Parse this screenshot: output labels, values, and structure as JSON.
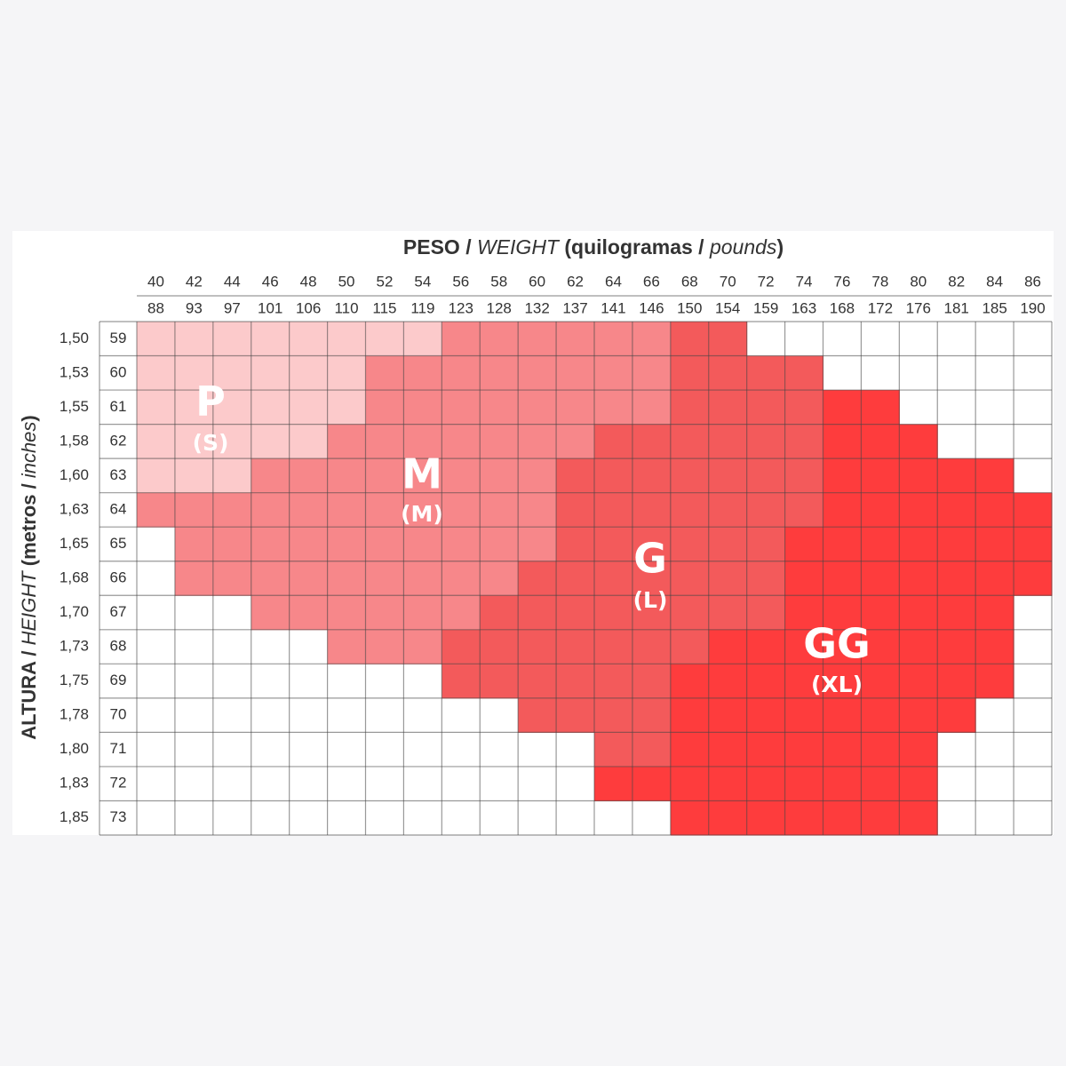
{
  "header": {
    "title": [
      "PESO / ",
      "WEIGHT",
      " (quilogramas / ",
      "pounds",
      ")"
    ],
    "side_title": [
      "ALTURA / ",
      "HEIGHT",
      " (metros / ",
      "inches",
      ")"
    ]
  },
  "columns": {
    "kg": [
      40,
      42,
      44,
      46,
      48,
      50,
      52,
      54,
      56,
      58,
      60,
      62,
      64,
      66,
      68,
      70,
      72,
      74,
      76,
      78,
      80,
      82,
      84,
      86
    ],
    "lbs": [
      88,
      93,
      97,
      101,
      106,
      110,
      115,
      119,
      123,
      128,
      132,
      137,
      141,
      146,
      150,
      154,
      159,
      163,
      168,
      172,
      176,
      181,
      185,
      190
    ]
  },
  "rows": {
    "meters": [
      "1,50",
      "1,53",
      "1,55",
      "1,58",
      "1,60",
      "1,63",
      "1,65",
      "1,68",
      "1,70",
      "1,73",
      "1,75",
      "1,78",
      "1,80",
      "1,83",
      "1,85"
    ],
    "inches": [
      59,
      60,
      61,
      62,
      63,
      64,
      65,
      66,
      67,
      68,
      69,
      70,
      71,
      72,
      73
    ]
  },
  "sizes": [
    {
      "label": "P",
      "sub": "(S)",
      "color": "#fccacb"
    },
    {
      "label": "M",
      "sub": "(M)",
      "color": "#f7878a"
    },
    {
      "label": "G",
      "sub": "(L)",
      "color": "#f35a5b"
    },
    {
      "label": "GG",
      "sub": "(XL)",
      "color": "#fe3c3d"
    }
  ],
  "cells": [
    [
      0,
      0,
      0,
      0,
      0,
      0,
      0,
      0,
      1,
      1,
      1,
      1,
      1,
      1,
      2,
      2,
      null,
      null,
      null,
      null,
      null,
      null,
      null,
      null
    ],
    [
      0,
      0,
      0,
      0,
      0,
      0,
      1,
      1,
      1,
      1,
      1,
      1,
      1,
      1,
      2,
      2,
      2,
      2,
      null,
      null,
      null,
      null,
      null,
      null
    ],
    [
      0,
      0,
      0,
      0,
      0,
      0,
      1,
      1,
      1,
      1,
      1,
      1,
      1,
      1,
      2,
      2,
      2,
      2,
      3,
      3,
      null,
      null,
      null,
      null
    ],
    [
      0,
      0,
      0,
      0,
      0,
      1,
      1,
      1,
      1,
      1,
      1,
      1,
      2,
      2,
      2,
      2,
      2,
      2,
      3,
      3,
      3,
      null,
      null,
      null
    ],
    [
      0,
      0,
      0,
      1,
      1,
      1,
      1,
      1,
      1,
      1,
      1,
      2,
      2,
      2,
      2,
      2,
      2,
      2,
      3,
      3,
      3,
      3,
      3,
      null
    ],
    [
      1,
      1,
      1,
      1,
      1,
      1,
      1,
      1,
      1,
      1,
      1,
      2,
      2,
      2,
      2,
      2,
      2,
      2,
      3,
      3,
      3,
      3,
      3,
      3
    ],
    [
      null,
      1,
      1,
      1,
      1,
      1,
      1,
      1,
      1,
      1,
      1,
      2,
      2,
      2,
      2,
      2,
      2,
      3,
      3,
      3,
      3,
      3,
      3,
      3
    ],
    [
      null,
      1,
      1,
      1,
      1,
      1,
      1,
      1,
      1,
      1,
      2,
      2,
      2,
      2,
      2,
      2,
      2,
      3,
      3,
      3,
      3,
      3,
      3,
      3
    ],
    [
      null,
      null,
      null,
      1,
      1,
      1,
      1,
      1,
      1,
      2,
      2,
      2,
      2,
      2,
      2,
      2,
      2,
      3,
      3,
      3,
      3,
      3,
      3,
      null
    ],
    [
      null,
      null,
      null,
      null,
      null,
      1,
      1,
      1,
      2,
      2,
      2,
      2,
      2,
      2,
      2,
      3,
      3,
      3,
      3,
      3,
      3,
      3,
      3,
      null
    ],
    [
      null,
      null,
      null,
      null,
      null,
      null,
      null,
      null,
      2,
      2,
      2,
      2,
      2,
      2,
      3,
      3,
      3,
      3,
      3,
      3,
      3,
      3,
      3,
      null
    ],
    [
      null,
      null,
      null,
      null,
      null,
      null,
      null,
      null,
      null,
      null,
      2,
      2,
      2,
      2,
      3,
      3,
      3,
      3,
      3,
      3,
      3,
      3,
      null,
      null
    ],
    [
      null,
      null,
      null,
      null,
      null,
      null,
      null,
      null,
      null,
      null,
      null,
      null,
      2,
      2,
      3,
      3,
      3,
      3,
      3,
      3,
      3,
      null,
      null,
      null
    ],
    [
      null,
      null,
      null,
      null,
      null,
      null,
      null,
      null,
      null,
      null,
      null,
      null,
      3,
      3,
      3,
      3,
      3,
      3,
      3,
      3,
      3,
      null,
      null,
      null
    ],
    [
      null,
      null,
      null,
      null,
      null,
      null,
      null,
      null,
      null,
      null,
      null,
      null,
      null,
      null,
      3,
      3,
      3,
      3,
      3,
      3,
      3,
      null,
      null,
      null
    ]
  ]
}
